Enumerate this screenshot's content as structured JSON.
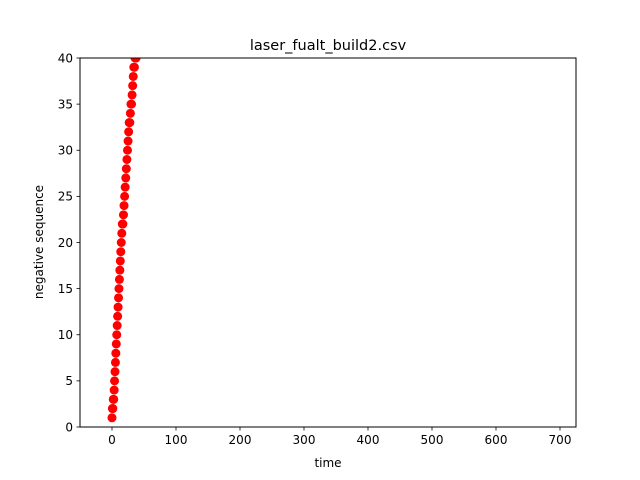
{
  "chart_data": {
    "type": "scatter",
    "title": "laser_fualt_build2.csv",
    "xlabel": "time",
    "ylabel": "negative sequence",
    "xlim": [
      -50,
      725
    ],
    "ylim": [
      0,
      40
    ],
    "x_ticks": [
      0,
      100,
      200,
      300,
      400,
      500,
      600,
      700
    ],
    "y_ticks": [
      0,
      5,
      10,
      15,
      20,
      25,
      30,
      35,
      40
    ],
    "grid": false,
    "legend": "none",
    "marker_color": "#ff0000",
    "series": [
      {
        "x": [
          0.0,
          0.6,
          1.3,
          2.0,
          2.7,
          3.4,
          4.0,
          4.7,
          5.4,
          6.0,
          6.7,
          7.4,
          8.1,
          8.8,
          9.5,
          10.2,
          10.9,
          11.6,
          12.3,
          13.0,
          13.7,
          14.5,
          15.3,
          16.1,
          17.0,
          17.9,
          18.8,
          19.7,
          20.6,
          21.5,
          22.4,
          23.3,
          24.2,
          25.1,
          26.0,
          26.9,
          27.8,
          28.7,
          29.6,
          30.5,
          31.4,
          32.3,
          33.2,
          34.1,
          35.0,
          35.9,
          36.8,
          37.7
        ],
        "y": [
          1,
          2,
          2,
          3,
          3,
          4,
          5,
          6,
          7,
          8,
          9,
          10,
          11,
          12,
          13,
          14,
          15,
          16,
          17,
          18,
          19,
          20,
          21,
          22,
          22,
          23,
          24,
          25,
          26,
          27,
          28,
          29,
          30,
          31,
          32,
          33,
          33,
          34,
          35,
          35,
          36,
          37,
          38,
          39,
          39,
          40,
          40,
          40
        ]
      }
    ]
  }
}
